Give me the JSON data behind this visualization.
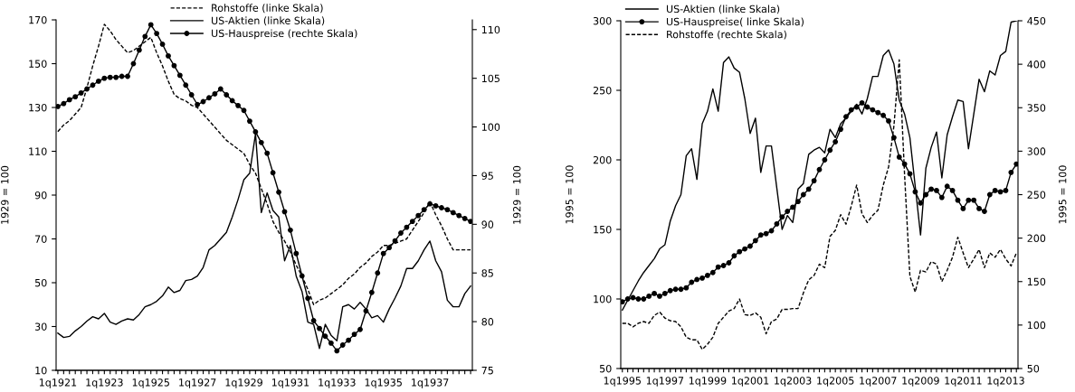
{
  "chart_data": [
    {
      "type": "line",
      "ylabel": "1929 = 100",
      "y2label": "1929 = 100",
      "legend": "upper center",
      "categories": [
        "1q1921",
        null,
        null,
        null,
        null,
        null,
        null,
        null,
        "1q1923",
        null,
        null,
        null,
        null,
        null,
        null,
        null,
        "1q1925",
        null,
        null,
        null,
        null,
        null,
        null,
        null,
        "1q1927",
        null,
        null,
        null,
        null,
        null,
        null,
        null,
        "1q1929",
        null,
        null,
        null,
        null,
        null,
        null,
        null,
        "1q1931",
        null,
        null,
        null,
        null,
        null,
        null,
        null,
        "1q1933",
        null,
        null,
        null,
        null,
        null,
        null,
        null,
        "1q1935",
        null,
        null,
        null,
        null,
        null,
        null,
        null,
        "1q1937",
        null,
        null,
        null,
        null,
        null,
        null,
        null
      ],
      "ylim": [
        10,
        170
      ],
      "yticks": [
        10,
        30,
        50,
        70,
        90,
        110,
        130,
        150,
        170
      ],
      "y2lim": [
        75,
        111
      ],
      "y2ticks": [
        75,
        80,
        85,
        90,
        95,
        100,
        105,
        110
      ],
      "series": [
        {
          "name": "Rohstoffe (linke Skala)",
          "color": "#000000",
          "line_style": "dashed",
          "marker": "none",
          "values": [
            119,
            122,
            124,
            127,
            130,
            139,
            149,
            158,
            168,
            165,
            161,
            158,
            155,
            156,
            158,
            160,
            162,
            155,
            149,
            142,
            136,
            134,
            133,
            131,
            130,
            127,
            124,
            121,
            118,
            115,
            113,
            111,
            109,
            104,
            100,
            93,
            86,
            78,
            73,
            69,
            64,
            58,
            53,
            47,
            40,
            42,
            43,
            45,
            47,
            49,
            52,
            54,
            57,
            59,
            62,
            64,
            67,
            67,
            68,
            69,
            70,
            74,
            78,
            82,
            87,
            81,
            76,
            70,
            65,
            65,
            65,
            65
          ]
        },
        {
          "name": "US-Aktien (linke Skala)",
          "color": "#000000",
          "line_style": "solid",
          "marker": "none",
          "values": [
            27,
            25,
            25.5,
            28,
            30,
            32.5,
            34.5,
            33.5,
            36,
            32,
            31,
            32.5,
            33.5,
            33,
            35.5,
            39,
            40,
            41.5,
            44,
            48,
            45.5,
            46.5,
            51,
            51.5,
            53,
            57,
            65,
            67,
            70,
            73,
            80,
            88,
            97,
            100,
            118,
            82,
            91,
            83,
            80,
            60,
            67,
            53,
            46,
            32,
            31,
            20,
            31,
            26,
            23.5,
            39,
            40,
            38,
            41,
            38,
            34,
            35,
            32,
            38,
            43,
            48.5,
            56.5,
            56.5,
            60,
            65,
            69,
            60,
            55,
            42,
            39,
            39,
            45,
            48.5
          ]
        },
        {
          "name": "US-Hauspreise (rechte Skala)",
          "color": "#000000",
          "line_style": "solid",
          "marker": "circle",
          "axis": "y2",
          "values": [
            102.1,
            102.4,
            102.8,
            103.1,
            103.5,
            103.9,
            104.3,
            104.7,
            105,
            105.1,
            105.1,
            105.2,
            105.2,
            106.5,
            107.9,
            109.3,
            110.5,
            109.6,
            108.5,
            107.3,
            106.3,
            105.3,
            104.3,
            103.3,
            102.3,
            102.6,
            103,
            103.4,
            103.9,
            103.3,
            102.7,
            102.2,
            101.7,
            100.6,
            99.5,
            98.4,
            97.3,
            95.3,
            93.3,
            91.3,
            89.4,
            87,
            84.7,
            82.4,
            80.1,
            79.3,
            78.5,
            77.8,
            77,
            77.6,
            78.1,
            78.7,
            79.2,
            81.1,
            83,
            85,
            87,
            87.6,
            88.3,
            89.1,
            89.7,
            90.3,
            90.9,
            91.5,
            92.1,
            91.9,
            91.7,
            91.5,
            91.2,
            90.9,
            90.6,
            90.3
          ]
        }
      ]
    },
    {
      "type": "line",
      "ylabel": "1995 = 100",
      "y2label": "1995 = 100",
      "legend": "upper left",
      "categories": [
        "1q1995",
        null,
        null,
        null,
        null,
        null,
        null,
        null,
        "1q1997",
        null,
        null,
        null,
        null,
        null,
        null,
        null,
        "1q1999",
        null,
        null,
        null,
        null,
        null,
        null,
        null,
        "1q2001",
        null,
        null,
        null,
        null,
        null,
        null,
        null,
        "1q2003",
        null,
        null,
        null,
        null,
        null,
        null,
        null,
        "1q2005",
        null,
        null,
        null,
        null,
        null,
        null,
        null,
        "1q2007",
        null,
        null,
        null,
        null,
        null,
        null,
        null,
        "1q2009",
        null,
        null,
        null,
        null,
        null,
        null,
        null,
        "1q2011",
        null,
        null,
        null,
        null,
        null,
        null,
        null,
        "1q2013",
        null,
        null
      ],
      "ylim": [
        50,
        300
      ],
      "yticks": [
        50,
        100,
        150,
        200,
        250,
        300
      ],
      "y2lim": [
        50,
        450
      ],
      "y2ticks": [
        50,
        100,
        150,
        200,
        250,
        300,
        350,
        400,
        450
      ],
      "series": [
        {
          "name": "US-Aktien (linke Skala)",
          "color": "#000000",
          "line_style": "solid",
          "marker": "none",
          "values": [
            92,
            99,
            106,
            113,
            119,
            124,
            129,
            136,
            139,
            156,
            167,
            175,
            203,
            208,
            186,
            226,
            235,
            251,
            235,
            270,
            274,
            266,
            263,
            244,
            219,
            230,
            191,
            210,
            210,
            180,
            150,
            160,
            155,
            179,
            183,
            204,
            207,
            209,
            205,
            222,
            216,
            226,
            230,
            235,
            240,
            233,
            244,
            260,
            260,
            275,
            279,
            269,
            243,
            233,
            216,
            181,
            146,
            194,
            209,
            220,
            187,
            218,
            231,
            243,
            242,
            208,
            233,
            258,
            249,
            264,
            261,
            275,
            278,
            299,
            300
          ]
        },
        {
          "name": "US-Hauspreise( linke Skala)",
          "color": "#000000",
          "line_style": "solid",
          "marker": "circle",
          "values": [
            98,
            100,
            101,
            100,
            100,
            102,
            104,
            102,
            104,
            106,
            107,
            107,
            108,
            112,
            114,
            115,
            117,
            119,
            123,
            124,
            126,
            131,
            134,
            136,
            138,
            142,
            146,
            147,
            149,
            154,
            159,
            163,
            166,
            170,
            175,
            179,
            185,
            193,
            200,
            207,
            213,
            222,
            231,
            236,
            238,
            241,
            238,
            236,
            234,
            232,
            228,
            216,
            202,
            197,
            190,
            177,
            169,
            175,
            179,
            178,
            173,
            181,
            178,
            171,
            165,
            171,
            171,
            165,
            163,
            175,
            178,
            177,
            178,
            191,
            197
          ]
        },
        {
          "name": "Rohstoffe (rechte Skala)",
          "color": "#000000",
          "line_style": "dashed",
          "marker": "none",
          "axis": "y2",
          "values": [
            102,
            102,
            98,
            102,
            104,
            102,
            111,
            115,
            108,
            105,
            104,
            98,
            86,
            83,
            83,
            72,
            78,
            86,
            102,
            109,
            116,
            119,
            130,
            112,
            111,
            114,
            109,
            90,
            104,
            107,
            118,
            118,
            119,
            119,
            137,
            152,
            157,
            170,
            166,
            202,
            209,
            227,
            216,
            237,
            261,
            228,
            218,
            226,
            232,
            261,
            282,
            329,
            405,
            273,
            156,
            138,
            163,
            161,
            173,
            170,
            150,
            163,
            178,
            201,
            183,
            166,
            176,
            187,
            166,
            183,
            178,
            187,
            176,
            168,
            183
          ]
        }
      ]
    }
  ]
}
